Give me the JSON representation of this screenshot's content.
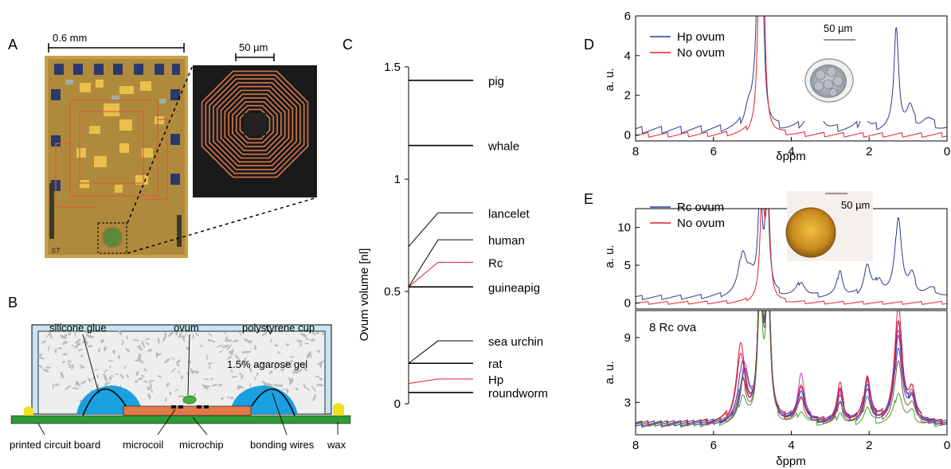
{
  "panel_letters": {
    "a": "A",
    "b": "B",
    "c": "C",
    "d": "D",
    "e": "E"
  },
  "panel_a": {
    "scale_chip": "0.6 mm",
    "scale_coil": "50 µm",
    "chip_mark": "ST"
  },
  "panel_b": {
    "silicone_glue": "silicone glue",
    "ovum": "ovum",
    "polystyrene_cup": "polystyrene cup",
    "agarose_gel": "1.5%  agarose gel",
    "printed_circuit_board": "printed circuit board",
    "microcoil": "microcoil",
    "microchip": "microchip",
    "bonding_wires": "bonding wires",
    "wax": "wax"
  },
  "colors": {
    "blue": "#2c3a8c",
    "red": "#e3202a",
    "chip": "#e07848",
    "pcb": "#2e9a3a",
    "glue": "#1aa0e0",
    "wax": "#f0e020",
    "cup": "#c8e4f4"
  },
  "chart_data": [
    {
      "panel": "C",
      "type": "table",
      "ylabel": "Ovum volume [nl]",
      "ylim": [
        0,
        1.5
      ],
      "yticks": [
        "0",
        "0.5",
        "1",
        "1.5"
      ],
      "entries": [
        {
          "name": "pig",
          "value": 1.44,
          "label_value": 1.44,
          "color": "black"
        },
        {
          "name": "whale",
          "value": 1.15,
          "label_value": 1.15,
          "color": "black"
        },
        {
          "name": "lancelet",
          "value": 0.7,
          "label_value": 0.85,
          "color": "black"
        },
        {
          "name": "human",
          "value": 0.52,
          "label_value": 0.73,
          "color": "black"
        },
        {
          "name": "Rc",
          "value": 0.52,
          "label_value": 0.63,
          "color": "red"
        },
        {
          "name": "guineapig",
          "value": 0.52,
          "label_value": 0.52,
          "color": "black"
        },
        {
          "name": "sea urchin",
          "value": 0.18,
          "label_value": 0.28,
          "color": "black"
        },
        {
          "name": "rat",
          "value": 0.18,
          "label_value": 0.18,
          "color": "black"
        },
        {
          "name": "Hp",
          "value": 0.09,
          "label_value": 0.11,
          "color": "red"
        },
        {
          "name": "roundworm",
          "value": 0.05,
          "label_value": 0.05,
          "color": "black"
        }
      ]
    },
    {
      "panel": "D",
      "type": "line",
      "xlabel": "δppm",
      "ylabel": "a. u.",
      "xlim": [
        8,
        0
      ],
      "ylim": [
        -0.3,
        6
      ],
      "xticks": [
        "8",
        "6",
        "4",
        "2",
        "0"
      ],
      "yticks": [
        "0",
        "2",
        "4",
        "6"
      ],
      "inset_scale": "50 µm",
      "series": [
        {
          "name": "Hp ovum",
          "color": "blue",
          "peaks": [
            [
              5.1,
              1.0,
              0.12
            ],
            [
              4.85,
              7,
              0.06
            ],
            [
              4.75,
              7,
              0.06
            ],
            [
              4.95,
              0.6,
              0.08
            ],
            [
              3.6,
              0.5,
              0.15
            ],
            [
              3.25,
              0.7,
              0.1
            ],
            [
              2.15,
              0.8,
              0.1
            ],
            [
              1.3,
              5.2,
              0.07
            ],
            [
              0.95,
              1.0,
              0.1
            ],
            [
              0.5,
              0.5,
              0.2
            ]
          ],
          "baseline": 0.25,
          "noise": 0.18
        },
        {
          "name": "No ovum",
          "color": "red",
          "peaks": [
            [
              4.82,
              7,
              0.06
            ],
            [
              4.72,
              7,
              0.06
            ]
          ],
          "baseline": 0.0,
          "noise": 0.12
        }
      ]
    },
    {
      "panel": "E-top",
      "type": "line",
      "ylabel": "a. u.",
      "xlim": [
        8,
        0
      ],
      "ylim": [
        -0.8,
        12.5
      ],
      "yticks": [
        "0",
        "5",
        "10"
      ],
      "inset_scale": "50 µm",
      "series": [
        {
          "name": "Rc  ovum",
          "color": "blue",
          "peaks": [
            [
              5.25,
              5.5,
              0.12
            ],
            [
              5.05,
              2.0,
              0.12
            ],
            [
              4.8,
              14,
              0.06
            ],
            [
              4.62,
              14,
              0.06
            ],
            [
              3.75,
              2.0,
              0.12
            ],
            [
              2.75,
              3.6,
              0.08
            ],
            [
              2.05,
              4.0,
              0.1
            ],
            [
              1.75,
              2.0,
              0.1
            ],
            [
              1.25,
              10.5,
              0.1
            ],
            [
              0.9,
              2.5,
              0.1
            ],
            [
              0.4,
              1.0,
              0.2
            ]
          ],
          "baseline": 0.7,
          "noise": 0.3
        },
        {
          "name": "No ovum",
          "color": "red",
          "peaks": [
            [
              4.75,
              14,
              0.06
            ],
            [
              4.6,
              14,
              0.06
            ]
          ],
          "baseline": 0.0,
          "noise": 0.2
        }
      ]
    },
    {
      "panel": "E-bottom",
      "type": "line",
      "xlabel": "δppm",
      "ylabel": "a. u.",
      "xlim": [
        8,
        0
      ],
      "ylim": [
        0,
        11.5
      ],
      "xticks": [
        "8",
        "6",
        "4",
        "2",
        "0"
      ],
      "yticks": [
        "3",
        "9"
      ],
      "annotation": "8 Rc  ova",
      "series": [
        {
          "color": "#2c3a8c",
          "peaks": [
            [
              5.25,
              5.5,
              0.12
            ],
            [
              4.8,
              14,
              0.07
            ],
            [
              4.6,
              14,
              0.07
            ],
            [
              3.75,
              3.0,
              0.12
            ],
            [
              2.75,
              3.2,
              0.09
            ],
            [
              2.05,
              4.0,
              0.1
            ],
            [
              1.25,
              9.5,
              0.12
            ],
            [
              0.9,
              2.5,
              0.1
            ]
          ],
          "baseline": 1.0
        },
        {
          "color": "#e3202a",
          "peaks": [
            [
              5.3,
              7.0,
              0.13
            ],
            [
              4.8,
              14,
              0.07
            ],
            [
              4.6,
              14,
              0.07
            ],
            [
              3.75,
              3.2,
              0.12
            ],
            [
              2.75,
              3.5,
              0.09
            ],
            [
              2.05,
              4.3,
              0.1
            ],
            [
              1.25,
              10.5,
              0.12
            ],
            [
              0.9,
              2.5,
              0.1
            ]
          ],
          "baseline": 1.0
        },
        {
          "color": "#c040c0",
          "peaks": [
            [
              5.2,
              5.0,
              0.12
            ],
            [
              4.8,
              14,
              0.07
            ],
            [
              4.6,
              14,
              0.07
            ],
            [
              3.75,
              4.5,
              0.1
            ],
            [
              2.75,
              2.8,
              0.09
            ],
            [
              2.05,
              3.5,
              0.1
            ],
            [
              1.25,
              8.5,
              0.12
            ],
            [
              0.9,
              2.0,
              0.1
            ]
          ],
          "baseline": 1.0
        },
        {
          "color": "#7030a0",
          "peaks": [
            [
              5.25,
              4.0,
              0.12
            ],
            [
              4.8,
              14,
              0.07
            ],
            [
              4.6,
              14,
              0.07
            ],
            [
              3.75,
              2.5,
              0.12
            ],
            [
              2.75,
              2.0,
              0.09
            ],
            [
              2.05,
              3.0,
              0.1
            ],
            [
              1.25,
              7.0,
              0.12
            ],
            [
              0.9,
              2.0,
              0.1
            ]
          ],
          "baseline": 1.0
        },
        {
          "color": "#d02060",
          "peaks": [
            [
              5.3,
              6.0,
              0.13
            ],
            [
              4.8,
              14,
              0.07
            ],
            [
              4.6,
              14,
              0.07
            ],
            [
              3.75,
              3.0,
              0.12
            ],
            [
              2.75,
              3.0,
              0.09
            ],
            [
              2.05,
              4.0,
              0.1
            ],
            [
              1.25,
              9.0,
              0.12
            ],
            [
              0.9,
              2.2,
              0.1
            ]
          ],
          "baseline": 1.0
        },
        {
          "color": "#3050c0",
          "peaks": [
            [
              5.2,
              4.5,
              0.12
            ],
            [
              4.8,
              14,
              0.07
            ],
            [
              4.6,
              14,
              0.07
            ],
            [
              3.75,
              2.8,
              0.12
            ],
            [
              2.75,
              2.5,
              0.09
            ],
            [
              2.05,
              3.2,
              0.1
            ],
            [
              1.25,
              8.0,
              0.12
            ],
            [
              0.9,
              2.0,
              0.1
            ]
          ],
          "baseline": 1.0
        },
        {
          "color": "#40a030",
          "peaks": [
            [
              5.25,
              2.5,
              0.12
            ],
            [
              4.8,
              12,
              0.07
            ],
            [
              4.6,
              12,
              0.07
            ],
            [
              3.75,
              1.2,
              0.12
            ],
            [
              2.75,
              1.2,
              0.09
            ],
            [
              2.05,
              1.5,
              0.1
            ],
            [
              1.25,
              3.0,
              0.12
            ],
            [
              0.9,
              1.0,
              0.1
            ]
          ],
          "baseline": 0.9
        },
        {
          "color": "#8a5a3a",
          "peaks": [
            [
              5.25,
              3.5,
              0.12
            ],
            [
              4.8,
              13,
              0.07
            ],
            [
              4.6,
              13,
              0.07
            ],
            [
              3.75,
              2.0,
              0.12
            ],
            [
              2.75,
              1.8,
              0.09
            ],
            [
              2.05,
              2.5,
              0.1
            ],
            [
              1.25,
              5.5,
              0.12
            ],
            [
              0.9,
              1.5,
              0.1
            ]
          ],
          "baseline": 1.0
        }
      ]
    }
  ]
}
